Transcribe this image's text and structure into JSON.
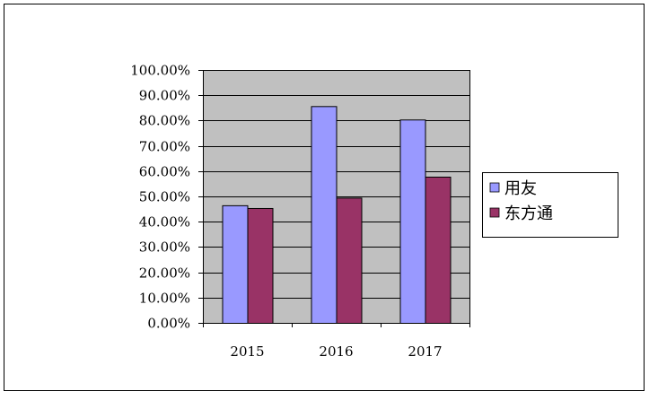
{
  "chart_data": {
    "type": "bar",
    "categories": [
      "2015",
      "2016",
      "2017"
    ],
    "series": [
      {
        "name": "用友",
        "values": [
          46.5,
          85.7,
          80.4
        ],
        "color": "#9999ff"
      },
      {
        "name": "东方通",
        "values": [
          45.4,
          49.5,
          57.8
        ],
        "color": "#993366"
      }
    ],
    "ylim": [
      0,
      100
    ],
    "yticks": [
      "0.00%",
      "10.00%",
      "20.00%",
      "30.00%",
      "40.00%",
      "50.00%",
      "60.00%",
      "70.00%",
      "80.00%",
      "90.00%",
      "100.00%"
    ],
    "grid": true,
    "legend": "right",
    "plot_background": "#c0c0c0"
  }
}
